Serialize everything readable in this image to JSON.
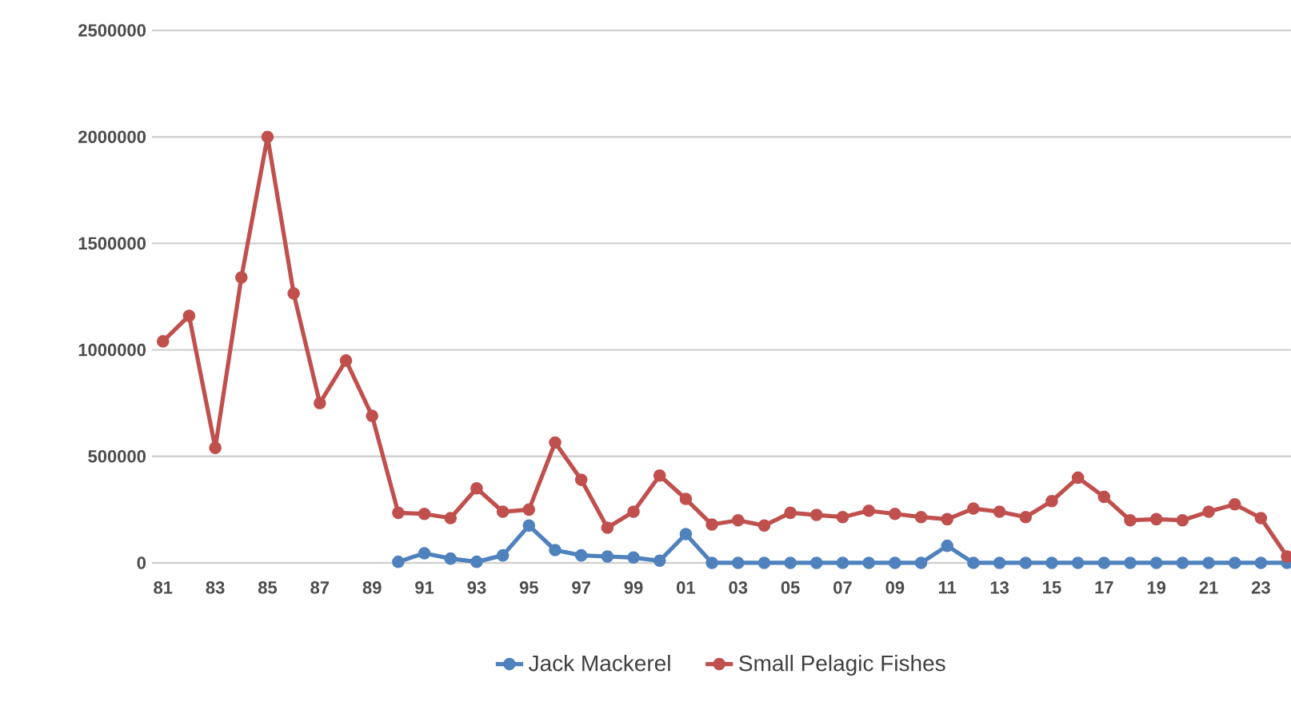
{
  "chart_data": {
    "type": "line",
    "categories": [
      "81",
      null,
      "83",
      null,
      "85",
      null,
      "87",
      null,
      "89",
      null,
      "91",
      null,
      "93",
      null,
      "95",
      null,
      "97",
      null,
      "99",
      null,
      "01",
      null,
      "03",
      null,
      "05",
      null,
      "07",
      null,
      "09",
      null,
      "11",
      null,
      "13",
      null,
      "15",
      null,
      "17",
      null,
      "19",
      null,
      "21",
      null,
      "23",
      null
    ],
    "series": [
      {
        "name": "Jack Mackerel",
        "color": "#4f81bd",
        "values": [
          null,
          null,
          null,
          null,
          null,
          null,
          null,
          null,
          null,
          5000,
          45000,
          20000,
          5000,
          35000,
          175000,
          60000,
          35000,
          30000,
          25000,
          10000,
          135000,
          0,
          0,
          0,
          0,
          0,
          0,
          0,
          0,
          0,
          80000,
          0,
          0,
          0,
          0,
          0,
          0,
          0,
          0,
          0,
          0,
          0,
          0,
          0
        ]
      },
      {
        "name": "Small Pelagic Fishes",
        "color": "#c0504d",
        "values": [
          1040000,
          1160000,
          540000,
          1340000,
          2000000,
          1265000,
          750000,
          950000,
          690000,
          235000,
          230000,
          210000,
          350000,
          240000,
          250000,
          565000,
          390000,
          165000,
          240000,
          410000,
          300000,
          180000,
          200000,
          175000,
          235000,
          225000,
          215000,
          245000,
          230000,
          215000,
          205000,
          255000,
          240000,
          215000,
          290000,
          400000,
          310000,
          200000,
          205000,
          200000,
          240000,
          275000,
          210000,
          30000
        ]
      }
    ],
    "ylim": [
      0,
      2500000
    ],
    "yticks": [
      0,
      500000,
      1000000,
      1500000,
      2000000,
      2500000
    ],
    "grid": "y",
    "legend": "bottom",
    "marker": "circle",
    "line_style": "solid"
  }
}
